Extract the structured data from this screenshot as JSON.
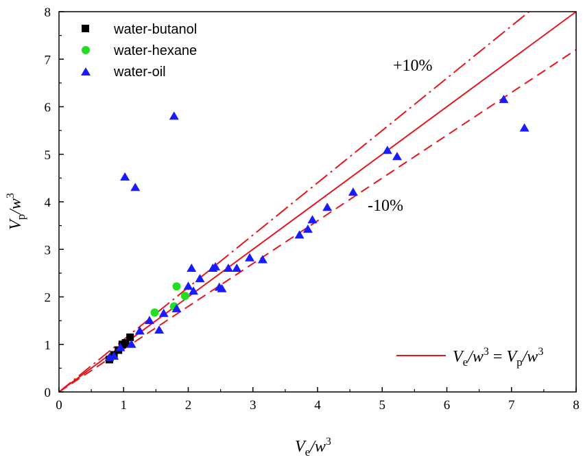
{
  "chart_data": {
    "type": "scatter",
    "xlim": [
      0,
      8
    ],
    "ylim": [
      0,
      8
    ],
    "x_ticks": [
      "0",
      "1",
      "2",
      "3",
      "4",
      "5",
      "6",
      "7",
      "8"
    ],
    "y_ticks": [
      "0",
      "1",
      "2",
      "3",
      "4",
      "5",
      "6",
      "7",
      "8"
    ],
    "xlabel": {
      "base": "V",
      "sub": "e",
      "mid": "/w",
      "sup": "3"
    },
    "ylabel": {
      "base": "V",
      "sub": "p",
      "mid": "/w",
      "sup": "3"
    },
    "grid": false,
    "legend_position": "top-left",
    "series": [
      {
        "name": "water-butanol",
        "marker": "square",
        "color": "#000000",
        "points": [
          [
            0.78,
            0.68
          ],
          [
            0.85,
            0.78
          ],
          [
            0.92,
            0.88
          ],
          [
            0.98,
            1.0
          ],
          [
            1.03,
            1.03
          ],
          [
            1.1,
            1.15
          ]
        ]
      },
      {
        "name": "water-hexane",
        "marker": "circle",
        "color": "#22dd22",
        "points": [
          [
            1.48,
            1.67
          ],
          [
            1.78,
            1.8
          ],
          [
            1.82,
            2.22
          ],
          [
            1.95,
            2.02
          ]
        ]
      },
      {
        "name": "water-oil",
        "marker": "triangle",
        "color": "#1a1aff",
        "points": [
          [
            0.78,
            0.72
          ],
          [
            0.85,
            0.75
          ],
          [
            0.95,
            0.93
          ],
          [
            1.02,
            4.52
          ],
          [
            1.12,
            1.0
          ],
          [
            1.18,
            4.3
          ],
          [
            1.25,
            1.28
          ],
          [
            1.4,
            1.5
          ],
          [
            1.55,
            1.3
          ],
          [
            1.62,
            1.65
          ],
          [
            1.78,
            5.8
          ],
          [
            1.82,
            1.75
          ],
          [
            2.0,
            2.22
          ],
          [
            2.05,
            2.6
          ],
          [
            2.08,
            2.12
          ],
          [
            2.18,
            2.38
          ],
          [
            2.38,
            2.6
          ],
          [
            2.42,
            2.63
          ],
          [
            2.48,
            2.2
          ],
          [
            2.52,
            2.17
          ],
          [
            2.62,
            2.6
          ],
          [
            2.75,
            2.6
          ],
          [
            2.95,
            2.82
          ],
          [
            3.15,
            2.78
          ],
          [
            3.72,
            3.3
          ],
          [
            3.85,
            3.42
          ],
          [
            3.92,
            3.62
          ],
          [
            4.15,
            3.88
          ],
          [
            4.55,
            4.2
          ],
          [
            5.08,
            5.08
          ],
          [
            5.23,
            4.95
          ],
          [
            6.88,
            6.15
          ],
          [
            7.2,
            5.55
          ]
        ]
      }
    ],
    "reference_lines": [
      {
        "style": "solid",
        "slope": 1.0
      },
      {
        "style": "dash-dot",
        "slope": 1.1
      },
      {
        "style": "dash",
        "slope": 0.9
      }
    ],
    "annotations": {
      "plus": "+10%",
      "minus": "-10%"
    },
    "fit_legend": {
      "lhs_base": "V",
      "lhs_sub": "e",
      "lhs_mid": "/w",
      "lhs_sup": "3",
      "eq": " = ",
      "rhs_base": "V",
      "rhs_sub": "p",
      "rhs_mid": "/w",
      "rhs_sup": "3"
    }
  },
  "colors": {
    "line": "#e8141b",
    "axis": "#000000"
  }
}
